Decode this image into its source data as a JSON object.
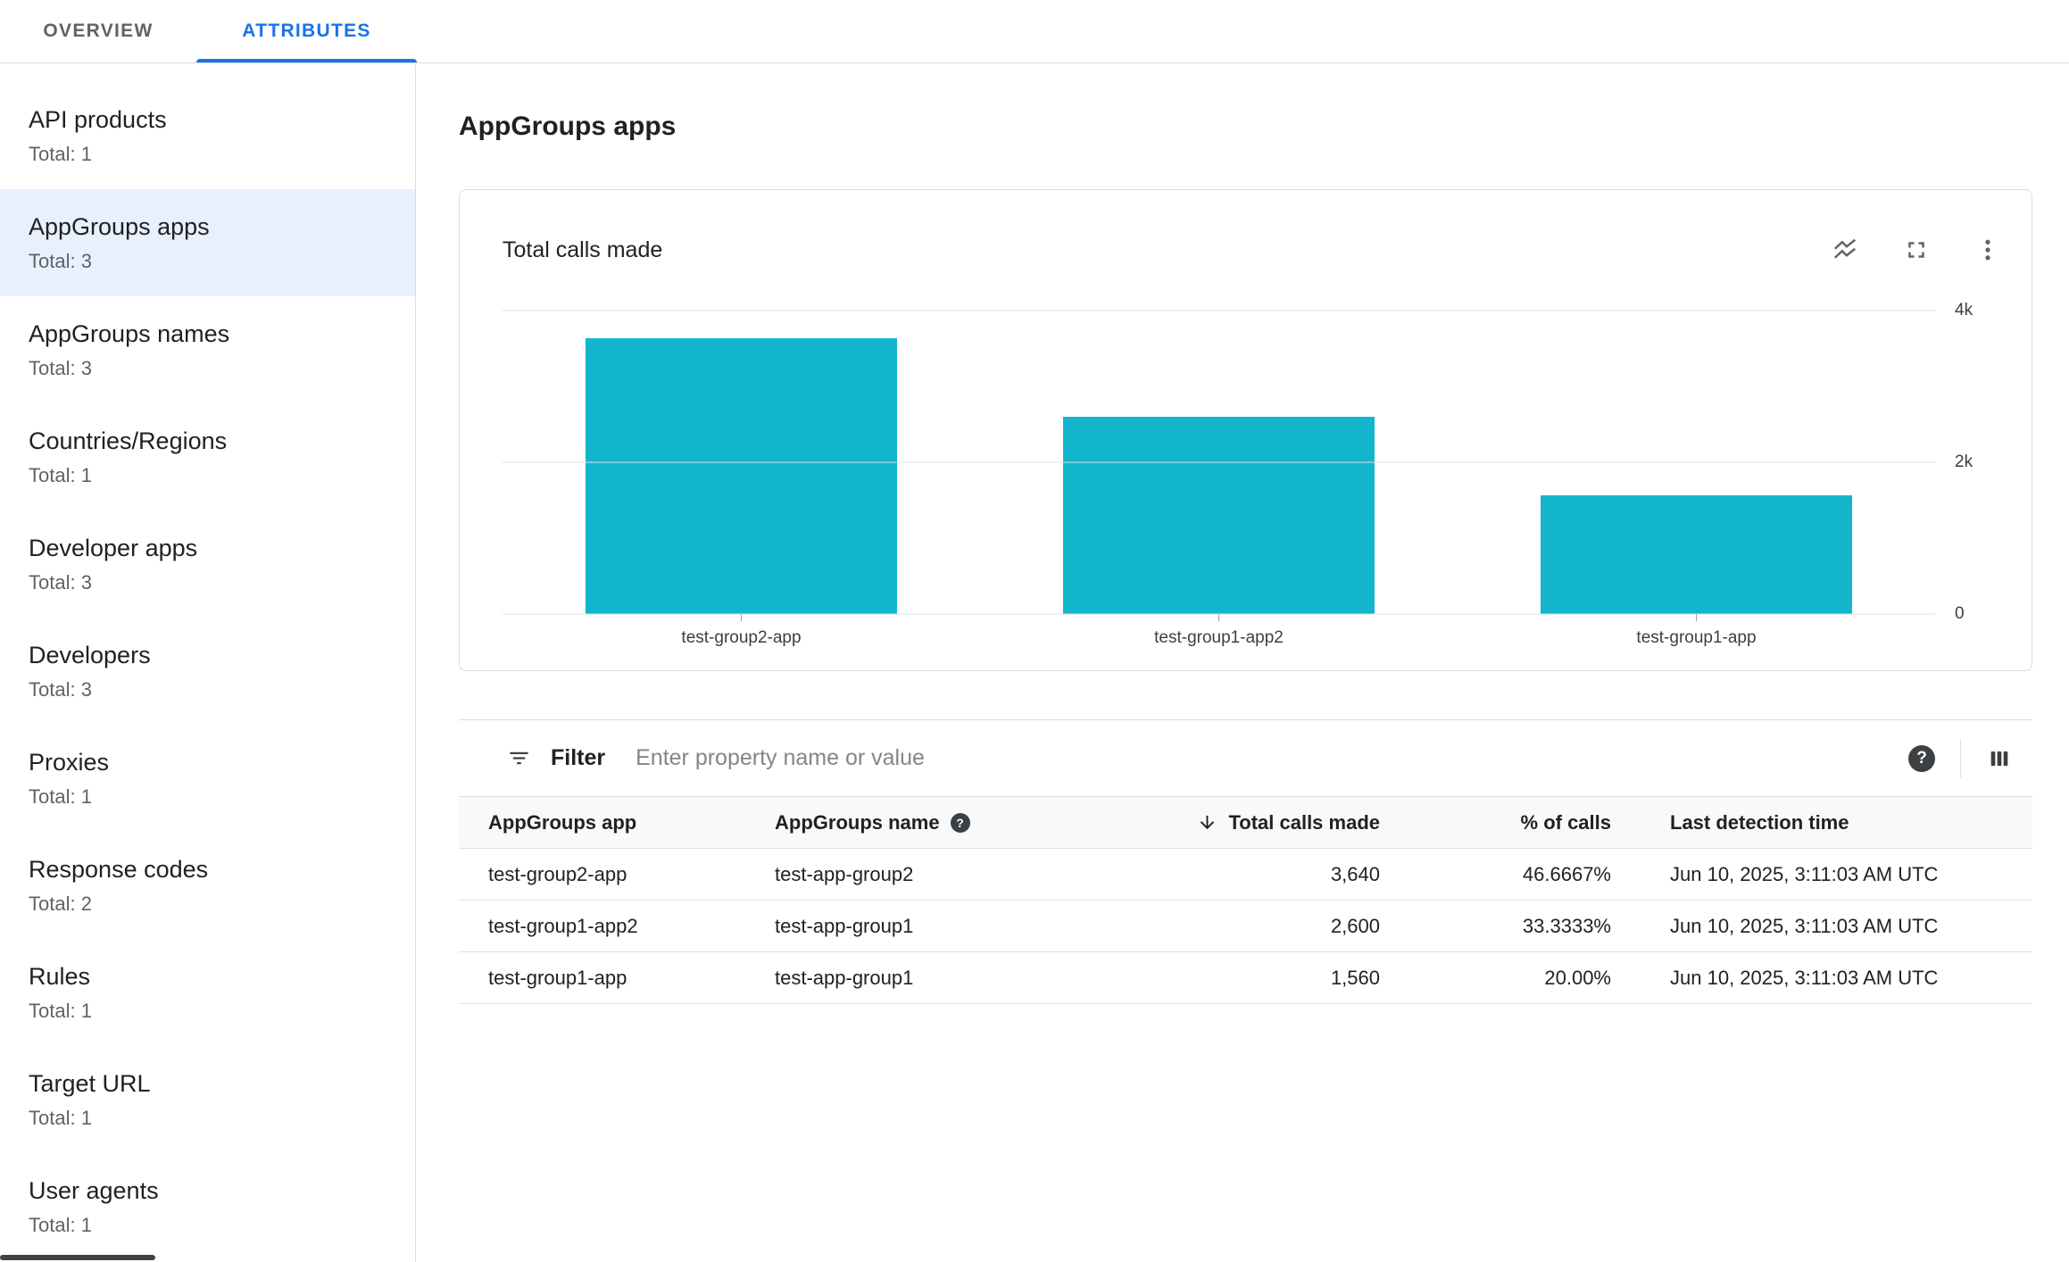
{
  "tabs": {
    "overview": "OVERVIEW",
    "attributes": "ATTRIBUTES"
  },
  "sidebar": {
    "items": [
      {
        "label": "API products",
        "total": "Total: 1",
        "selected": false
      },
      {
        "label": "AppGroups apps",
        "total": "Total: 3",
        "selected": true
      },
      {
        "label": "AppGroups names",
        "total": "Total: 3",
        "selected": false
      },
      {
        "label": "Countries/Regions",
        "total": "Total: 1",
        "selected": false
      },
      {
        "label": "Developer apps",
        "total": "Total: 3",
        "selected": false
      },
      {
        "label": "Developers",
        "total": "Total: 3",
        "selected": false
      },
      {
        "label": "Proxies",
        "total": "Total: 1",
        "selected": false
      },
      {
        "label": "Response codes",
        "total": "Total: 2",
        "selected": false
      },
      {
        "label": "Rules",
        "total": "Total: 1",
        "selected": false
      },
      {
        "label": "Target URL",
        "total": "Total: 1",
        "selected": false
      },
      {
        "label": "User agents",
        "total": "Total: 1",
        "selected": false
      }
    ]
  },
  "main": {
    "title": "AppGroups apps",
    "chart_card": {
      "title": "Total calls made",
      "icons": [
        "stacked-line-chart",
        "fullscreen",
        "more-vert"
      ]
    },
    "filter": {
      "label": "Filter",
      "placeholder": "Enter property name or value"
    },
    "table": {
      "columns": [
        "AppGroups app",
        "AppGroups name",
        "Total calls made",
        "% of calls",
        "Last detection time"
      ],
      "sort_column": "Total calls made",
      "sort_direction": "desc",
      "rows": [
        {
          "app": "test-group2-app",
          "name": "test-app-group2",
          "calls": "3,640",
          "pct": "46.6667%",
          "last_detection": "Jun 10, 2025, 3:11:03 AM UTC"
        },
        {
          "app": "test-group1-app2",
          "name": "test-app-group1",
          "calls": "2,600",
          "pct": "33.3333%",
          "last_detection": "Jun 10, 2025, 3:11:03 AM UTC"
        },
        {
          "app": "test-group1-app",
          "name": "test-app-group1",
          "calls": "1,560",
          "pct": "20.00%",
          "last_detection": "Jun 10, 2025, 3:11:03 AM UTC"
        }
      ]
    }
  },
  "chart_data": {
    "type": "bar",
    "title": "Total calls made",
    "categories": [
      "test-group2-app",
      "test-group1-app2",
      "test-group1-app"
    ],
    "values": [
      3640,
      2600,
      1560
    ],
    "xlabel": "",
    "ylabel": "",
    "ylim": [
      0,
      4000
    ],
    "yticks": [
      {
        "value": 4000,
        "label": "4k"
      },
      {
        "value": 2000,
        "label": "2k"
      },
      {
        "value": 0,
        "label": "0"
      }
    ],
    "bar_color": "#12b5cb",
    "grid": true,
    "legend": false
  },
  "colors": {
    "accent": "#1a73e8",
    "bar_teal": "#12b5cb",
    "selected_item_bg": "#e8f0fe",
    "border": "#dadce0",
    "text_primary": "#202124",
    "text_secondary": "#5f6368",
    "table_header_bg": "#f8f9fa"
  }
}
